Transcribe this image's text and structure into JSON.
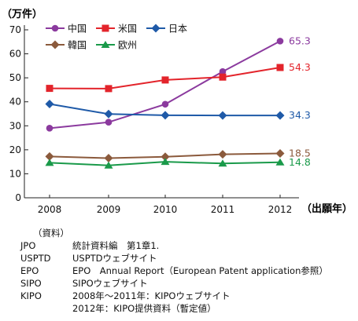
{
  "chart_data": {
    "type": "line",
    "yunit": "（万件）",
    "xunit": "（出願年）",
    "x": [
      "2008",
      "2009",
      "2010",
      "2011",
      "2012"
    ],
    "ylim": [
      0,
      70
    ],
    "yticks": [
      "0",
      "10",
      "20",
      "30",
      "40",
      "50",
      "60",
      "70"
    ],
    "grid": false,
    "legend_position": "top-left",
    "series": [
      {
        "name": "中国",
        "color": "#8b3a9e",
        "marker": "circle",
        "values": [
          29.0,
          31.5,
          39.0,
          52.6,
          65.3
        ],
        "end_label": "65.3"
      },
      {
        "name": "米国",
        "color": "#e3242b",
        "marker": "square",
        "values": [
          45.6,
          45.5,
          49.1,
          50.3,
          54.3
        ],
        "end_label": "54.3"
      },
      {
        "name": "日本",
        "color": "#1f5aa8",
        "marker": "diamond",
        "values": [
          39.1,
          34.9,
          34.4,
          34.3,
          34.3
        ],
        "end_label": "34.3"
      },
      {
        "name": "韓国",
        "color": "#8b5a3c",
        "marker": "diamond",
        "values": [
          17.2,
          16.5,
          17.1,
          18.1,
          18.5
        ],
        "end_label": "18.5"
      },
      {
        "name": "欧州",
        "color": "#1a9a4a",
        "marker": "triangle",
        "values": [
          14.6,
          13.5,
          15.0,
          14.3,
          14.8
        ],
        "end_label": "14.8"
      }
    ]
  },
  "notes": {
    "heading": "（資料）",
    "rows": [
      {
        "key": "JPO",
        "value": "統計資料編　第1章1."
      },
      {
        "key": "USPTD",
        "value": "USPTDウェブサイト"
      },
      {
        "key": "EPO",
        "value": "EPO　Annual Report（European Patent application参照）"
      },
      {
        "key": "SIPO",
        "value": "SIPOウェブサイト"
      },
      {
        "key": "KIPO",
        "value": "2008年～2011年：KIPOウェブサイト"
      },
      {
        "key": "",
        "value": "2012年：KIPO提供資料（暫定値）"
      }
    ]
  }
}
